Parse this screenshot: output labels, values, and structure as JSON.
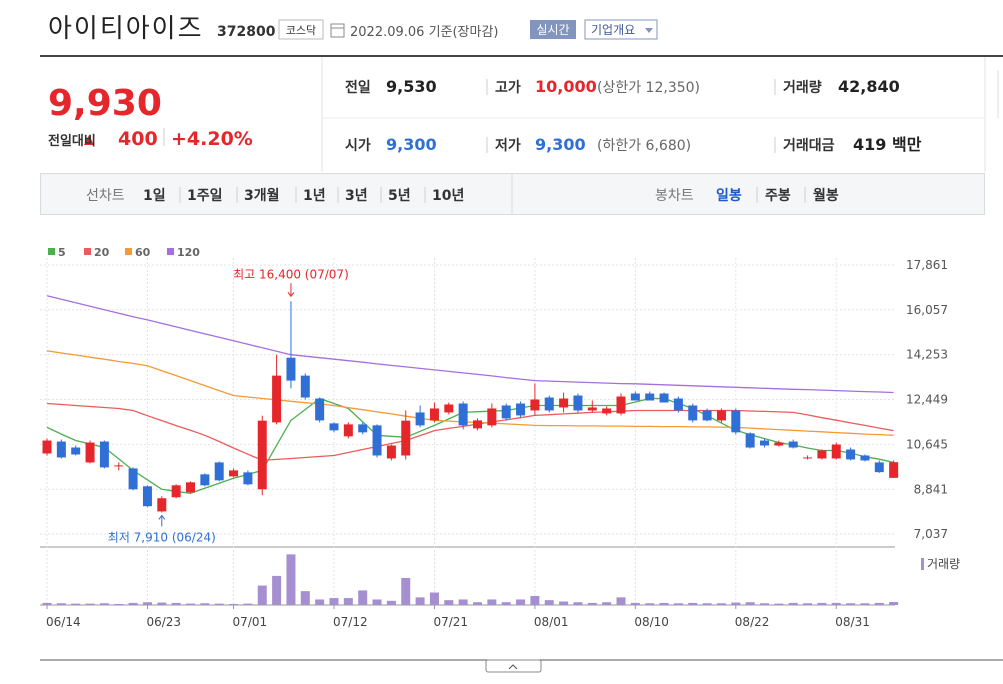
{
  "header": {
    "name": "아이티아이즈",
    "code": "372800",
    "market": "코스닥",
    "date": "2022.09.06 기준(장마감)",
    "realtime": "실시간",
    "overview": "기업개요"
  },
  "summary": {
    "price": "9,930",
    "change_label": "전일대비",
    "change": "400",
    "change_pct": "+4.20%"
  },
  "info": {
    "rows": [
      [
        {
          "label": "전일",
          "value": "9,530"
        },
        {
          "label": "고가",
          "value": "10,000",
          "note": "(상한가 12,350)"
        },
        {
          "label": "거래량",
          "value": "42,840"
        }
      ],
      [
        {
          "label": "시가",
          "value": "9,300"
        },
        {
          "label": "저가",
          "value": "9,300",
          "note": "(하한가 6,680)"
        },
        {
          "label": "거래대금",
          "value": "419 백만"
        }
      ]
    ]
  },
  "tabs": {
    "line_label": "선차트",
    "line_periods": [
      "1일",
      "1주일",
      "3개월",
      "1년",
      "3년",
      "5년",
      "10년"
    ],
    "candle_label": "봉차트",
    "candle_periods": [
      "일봉",
      "주봉",
      "월봉"
    ],
    "active_candle_period": 0
  },
  "chart_data": {
    "type": "candlestick",
    "categories": [
      "06/14",
      null,
      null,
      null,
      null,
      null,
      null,
      "06/23",
      null,
      null,
      null,
      null,
      null,
      "07/01",
      null,
      null,
      null,
      null,
      null,
      null,
      "07/12",
      null,
      null,
      null,
      null,
      null,
      null,
      "07/21",
      null,
      null,
      null,
      null,
      null,
      null,
      "08/01",
      null,
      null,
      null,
      null,
      null,
      null,
      "08/10",
      null,
      null,
      null,
      null,
      null,
      null,
      "08/22",
      null,
      null,
      null,
      null,
      null,
      null,
      "08/31",
      null,
      null,
      null,
      null
    ],
    "ohlc": {
      "up_color": "#e5262b",
      "down_color": "#2f6fd6",
      "open": [
        10280,
        10760,
        10520,
        9920,
        10760,
        9760,
        9680,
        8960,
        7950,
        8520,
        8720,
        9440,
        9920,
        9360,
        9520,
        8840,
        11530,
        14130,
        13410,
        12490,
        11490,
        10970,
        11450,
        11410,
        10080,
        10200,
        11930,
        11610,
        11930,
        12290,
        11290,
        11410,
        12210,
        12290,
        12010,
        12530,
        12130,
        12610,
        12010,
        11890,
        11890,
        12690,
        12690,
        12690,
        12490,
        12210,
        12010,
        11610,
        12010,
        11090,
        10800,
        10600,
        10760,
        10080,
        10080,
        10080,
        10440,
        10200,
        9920,
        9300
      ],
      "high": [
        10880,
        10840,
        10600,
        10800,
        10800,
        9920,
        9720,
        9000,
        8560,
        9040,
        9160,
        9480,
        9960,
        9680,
        9600,
        11800,
        14250,
        16400,
        13500,
        12530,
        11530,
        11530,
        11530,
        11450,
        10640,
        12010,
        12210,
        12330,
        12330,
        12370,
        11690,
        12290,
        12290,
        12370,
        13090,
        12610,
        12730,
        12690,
        12410,
        12170,
        12690,
        12770,
        12770,
        12730,
        12570,
        12290,
        12090,
        12090,
        12090,
        11130,
        10880,
        10800,
        10840,
        10200,
        10440,
        10720,
        10520,
        10240,
        10000,
        10000
      ],
      "low": [
        10200,
        10080,
        10200,
        9880,
        9680,
        9600,
        8800,
        8120,
        7910,
        8480,
        8680,
        8960,
        9160,
        9320,
        9000,
        8600,
        11450,
        12900,
        12450,
        11530,
        11130,
        10890,
        11050,
        10120,
        10000,
        10040,
        11330,
        11530,
        11850,
        11250,
        11210,
        11330,
        11610,
        11730,
        11810,
        11930,
        11930,
        11930,
        11930,
        11810,
        11810,
        12410,
        12410,
        12330,
        11930,
        11530,
        11570,
        11530,
        11050,
        10480,
        10520,
        10560,
        10480,
        10040,
        10040,
        10040,
        10000,
        9960,
        9500,
        9300
      ],
      "close": [
        10800,
        10120,
        10240,
        10720,
        9720,
        9800,
        8840,
        8160,
        8480,
        9000,
        9120,
        9000,
        9200,
        9600,
        9040,
        11600,
        13410,
        13210,
        12530,
        11610,
        11210,
        11450,
        11130,
        10200,
        10600,
        11600,
        11410,
        12090,
        12250,
        11410,
        11610,
        12090,
        11690,
        11810,
        12450,
        12010,
        12490,
        12010,
        12130,
        12090,
        12570,
        12410,
        12410,
        12330,
        12010,
        11610,
        11610,
        12010,
        11130,
        10520,
        10600,
        10720,
        10520,
        10120,
        10400,
        10640,
        10040,
        10000,
        9530,
        9930
      ]
    },
    "series": [
      {
        "name": "5",
        "color": "#4caf50",
        "values": [
          11330,
          11060,
          10800,
          10660,
          10520,
          10060,
          9600,
          9220,
          8840,
          8760,
          8680,
          8880,
          9080,
          9280,
          9440,
          9600,
          10610,
          11610,
          12050,
          12490,
          12290,
          12090,
          11550,
          11010,
          10970,
          10930,
          11170,
          11410,
          11670,
          11930,
          11960,
          11980,
          12010,
          12110,
          12210,
          12210,
          12210,
          12210,
          12210,
          12210,
          12210,
          12350,
          12490,
          12490,
          12290,
          12090,
          11800,
          11500,
          11210,
          11040,
          10880,
          10720,
          10620,
          10500,
          10400,
          10400,
          10300,
          10150,
          10050,
          9920
        ]
      },
      {
        "name": "20",
        "color": "#ec5b5b",
        "values": [
          12290,
          12250,
          12210,
          12170,
          12130,
          12090,
          12010,
          11800,
          11600,
          11400,
          11210,
          11010,
          10760,
          10500,
          10250,
          10000,
          10040,
          10080,
          10120,
          10160,
          10200,
          10320,
          10440,
          10560,
          10680,
          10800,
          11000,
          11200,
          11290,
          11370,
          11460,
          11550,
          11630,
          11720,
          11810,
          11840,
          11870,
          11900,
          11930,
          11950,
          11980,
          12010,
          12010,
          12010,
          12010,
          12010,
          12010,
          12010,
          12010,
          11990,
          11970,
          11950,
          11930,
          11830,
          11720,
          11620,
          11510,
          11410,
          11300,
          11200
        ]
      },
      {
        "name": "60",
        "color": "#f59a34",
        "values": [
          14410,
          14320,
          14240,
          14150,
          14070,
          13980,
          13900,
          13810,
          13610,
          13410,
          13210,
          13010,
          12810,
          12610,
          12550,
          12490,
          12440,
          12380,
          12320,
          12270,
          12210,
          12120,
          12040,
          11950,
          11870,
          11780,
          11700,
          11610,
          11580,
          11550,
          11530,
          11500,
          11470,
          11440,
          11410,
          11400,
          11400,
          11390,
          11390,
          11380,
          11380,
          11370,
          11370,
          11360,
          11360,
          11350,
          11350,
          11340,
          11330,
          11300,
          11270,
          11240,
          11210,
          11180,
          11150,
          11120,
          11090,
          11060,
          11040,
          11010
        ]
      },
      {
        "name": "120",
        "color": "#a56fe0",
        "values": [
          16620,
          16480,
          16340,
          16200,
          16060,
          15920,
          15780,
          15650,
          15510,
          15370,
          15230,
          15090,
          14950,
          14810,
          14670,
          14530,
          14390,
          14250,
          14190,
          14130,
          14070,
          14010,
          13950,
          13880,
          13820,
          13760,
          13700,
          13640,
          13580,
          13520,
          13460,
          13400,
          13330,
          13270,
          13210,
          13190,
          13170,
          13150,
          13130,
          13110,
          13090,
          13080,
          13060,
          13040,
          13020,
          13000,
          12980,
          12960,
          12940,
          12920,
          12900,
          12880,
          12860,
          12850,
          12830,
          12810,
          12790,
          12770,
          12750,
          12730
        ]
      }
    ],
    "volume": {
      "name": "거래량",
      "color": "#a58fd0",
      "ylim": [
        0,
        750000
      ],
      "values": [
        30000,
        25000,
        20000,
        20000,
        25000,
        15000,
        30000,
        40000,
        35000,
        30000,
        20000,
        25000,
        20000,
        15000,
        20000,
        280000,
        420000,
        730000,
        200000,
        80000,
        100000,
        100000,
        210000,
        80000,
        60000,
        390000,
        110000,
        180000,
        70000,
        80000,
        40000,
        80000,
        40000,
        80000,
        130000,
        70000,
        50000,
        40000,
        30000,
        40000,
        110000,
        30000,
        25000,
        30000,
        25000,
        30000,
        25000,
        25000,
        35000,
        40000,
        25000,
        20000,
        30000,
        25000,
        30000,
        30000,
        25000,
        25000,
        30000,
        42840
      ]
    },
    "ylim": [
      6600,
      18140
    ],
    "yticks": [
      {
        "value": 17861,
        "label": "17,861"
      },
      {
        "value": 16057,
        "label": "16,057"
      },
      {
        "value": 14253,
        "label": "14,253"
      },
      {
        "value": 12449,
        "label": "12,449"
      },
      {
        "value": 10645,
        "label": "10,645"
      },
      {
        "value": 8841,
        "label": "8,841"
      },
      {
        "value": 7037,
        "label": "7,037"
      }
    ],
    "grid": true,
    "annotations": [
      {
        "text": "최고 16,400 (07/07)",
        "color": "#e5262b"
      },
      {
        "text": "최저 7,910 (06/24)",
        "color": "#2f6fd6"
      }
    ]
  }
}
